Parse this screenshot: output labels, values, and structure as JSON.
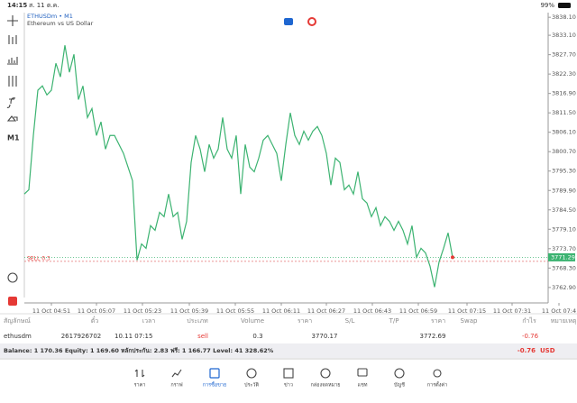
{
  "status_bar": {
    "time": "14:15",
    "date": "ส. 11 ต.ค.",
    "battery": "99%"
  },
  "toolbar": {
    "timeframe": "M1"
  },
  "chart_data": {
    "type": "line",
    "title": "ETHUSDm • M1",
    "subtitle": "Ethereum vs US Dollar",
    "x_labels": [
      "11 Oct 04:51",
      "11 Oct 05:07",
      "11 Oct 05:23",
      "11 Oct 05:39",
      "11 Oct 05:55",
      "11 Oct 06:11",
      "11 Oct 06:27",
      "11 Oct 06:43",
      "11 Oct 06:59",
      "11 Oct 07:15",
      "11 Oct 07:31",
      "11 Oct 07:4"
    ],
    "series": [
      {
        "name": "ETHUSDm",
        "color": "#3cb371",
        "values": [
          3788.9,
          3790.1,
          3805.2,
          3817.8,
          3819.0,
          3816.5,
          3817.8,
          3825.3,
          3821.5,
          3830.3,
          3822.8,
          3827.8,
          3815.2,
          3819.0,
          3810.2,
          3812.7,
          3805.2,
          3809.0,
          3801.4,
          3805.2,
          3805.2,
          3802.7,
          3800.2,
          3796.4,
          3792.6,
          3770.5,
          3775.0,
          3773.8,
          3780.1,
          3778.8,
          3783.8,
          3782.6,
          3788.9,
          3782.6,
          3783.8,
          3776.3,
          3781.3,
          3797.7,
          3805.2,
          3801.4,
          3795.1,
          3802.7,
          3798.9,
          3801.4,
          3810.2,
          3801.4,
          3798.9,
          3805.2,
          3788.9,
          3802.7,
          3796.4,
          3795.1,
          3798.9,
          3803.9,
          3805.2,
          3802.7,
          3800.2,
          3792.6,
          3802.7,
          3811.5,
          3805.2,
          3802.7,
          3806.4,
          3803.9,
          3806.4,
          3807.7,
          3805.2,
          3800.2,
          3791.4,
          3798.9,
          3797.7,
          3790.1,
          3791.4,
          3788.9,
          3795.1,
          3787.6,
          3786.4,
          3782.6,
          3785.1,
          3780.1,
          3782.6,
          3781.3,
          3778.8,
          3781.3,
          3778.8,
          3775.0,
          3780.1,
          3771.3,
          3773.8,
          3772.5,
          3768.8,
          3763.0,
          3770.0,
          3773.8,
          3778.1,
          3771.3
        ]
      }
    ],
    "ylim": [
      3760.1,
      3839.4
    ],
    "yticks": [
      {
        "value": 3838.1,
        "label": "3838.10"
      },
      {
        "value": 3833.1,
        "label": "3833.10"
      },
      {
        "value": 3827.7,
        "label": "3827.70"
      },
      {
        "value": 3822.3,
        "label": "3822.30"
      },
      {
        "value": 3816.9,
        "label": "3816.90"
      },
      {
        "value": 3811.5,
        "label": "3811.50"
      },
      {
        "value": 3806.1,
        "label": "3806.10"
      },
      {
        "value": 3800.7,
        "label": "3800.70"
      },
      {
        "value": 3795.3,
        "label": "3795.30"
      },
      {
        "value": 3789.9,
        "label": "3789.90"
      },
      {
        "value": 3784.5,
        "label": "3784.50"
      },
      {
        "value": 3779.1,
        "label": "3779.10"
      },
      {
        "value": 3773.7,
        "label": "3773.70"
      },
      {
        "value": 3768.3,
        "label": "3768.30"
      },
      {
        "value": 3762.9,
        "label": "3762.90"
      }
    ],
    "current_price": 3771.29,
    "position_label": "SELL 0.3",
    "grid": false
  },
  "trades": {
    "header": [
      "สัญลักษณ์",
      "ตั๋ว",
      "เวลา",
      "ประเภท",
      "Volume",
      "ราคา",
      "S/L",
      "T/P",
      "ราคา",
      "Swap",
      "กำไร",
      "หมายเหตุ"
    ],
    "row": {
      "symbol": "ethusdm",
      "ticket": "2617926702",
      "time": "10.11 07:15",
      "type": "sell",
      "volume": 0.3,
      "price": 3770.17,
      "current_price": 3772.69,
      "profit": -0.76
    }
  },
  "balance": {
    "text": "Balance: 1 170.36 Equity: 1 169.60 หลักประกัน: 2.83 ฟรี: 1 166.77 Level: 41 328.62%",
    "profit": -0.76,
    "currency": "USD"
  },
  "tabs": [
    "ราคา",
    "กราฟ",
    "การซื้อขาย",
    "ประวัติ",
    "ข่าว",
    "กล่องจดหมาย",
    "แชท",
    "บัญชี",
    "การตั้งค่า"
  ]
}
